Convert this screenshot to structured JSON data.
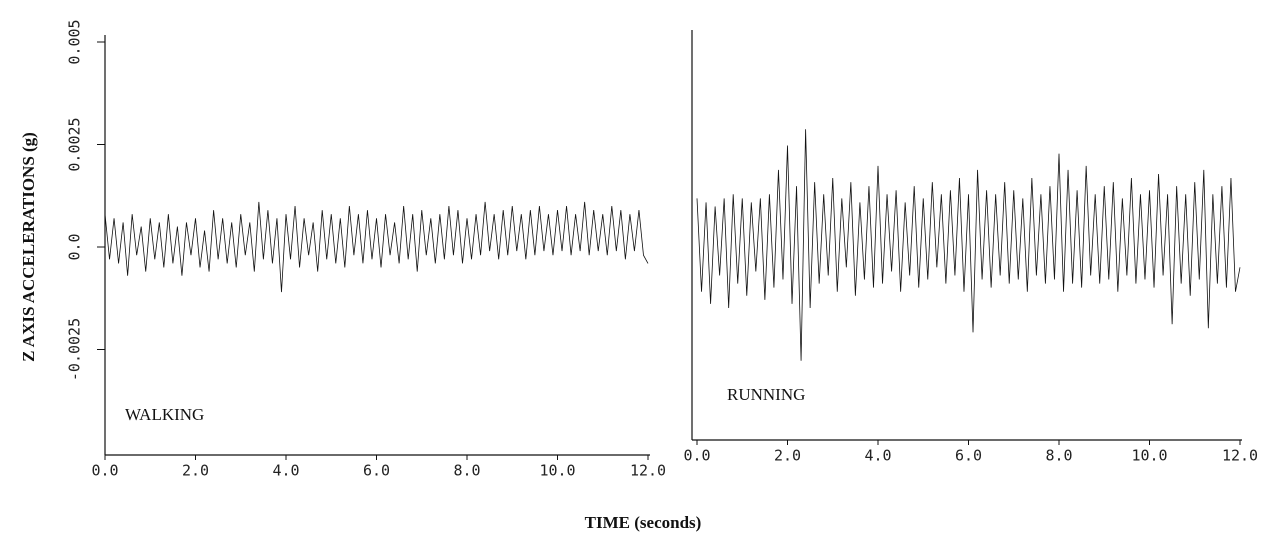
{
  "chart_data": [
    {
      "type": "line",
      "annotation": "WALKING",
      "ylabel": "Z AXIS ACCELERATIONS (g)",
      "xlabel": "TIME (seconds)",
      "xlim": [
        0,
        12
      ],
      "ylim": [
        -0.005,
        0.005
      ],
      "xticks": [
        {
          "value": 0,
          "label": "0.0"
        },
        {
          "value": 2,
          "label": "2.0"
        },
        {
          "value": 4,
          "label": "4.0"
        },
        {
          "value": 6,
          "label": "6.0"
        },
        {
          "value": 8,
          "label": "8.0"
        },
        {
          "value": 10,
          "label": "10.0"
        },
        {
          "value": 12,
          "label": "12.0"
        }
      ],
      "yticks": [
        -0.0025,
        {
          "value": 0,
          "label": "0.0"
        },
        0.0025,
        0.005
      ],
      "color": "#111111",
      "x": [
        0,
        0.1,
        0.2,
        0.3,
        0.4,
        0.5,
        0.6,
        0.7,
        0.8,
        0.9,
        1,
        1.1,
        1.2,
        1.3,
        1.4,
        1.5,
        1.6,
        1.7,
        1.8,
        1.9,
        2,
        2.1,
        2.2,
        2.3,
        2.4,
        2.5,
        2.6,
        2.7,
        2.8,
        2.9,
        3,
        3.1,
        3.2,
        3.3,
        3.4,
        3.5,
        3.6,
        3.7,
        3.8,
        3.9,
        4,
        4.1,
        4.2,
        4.3,
        4.4,
        4.5,
        4.6,
        4.7,
        4.8,
        4.9,
        5,
        5.1,
        5.2,
        5.3,
        5.4,
        5.5,
        5.6,
        5.7,
        5.8,
        5.9,
        6,
        6.1,
        6.2,
        6.3,
        6.4,
        6.5,
        6.6,
        6.7,
        6.8,
        6.9,
        7,
        7.1,
        7.2,
        7.3,
        7.4,
        7.5,
        7.6,
        7.7,
        7.8,
        7.9,
        8,
        8.1,
        8.2,
        8.3,
        8.4,
        8.5,
        8.6,
        8.7,
        8.8,
        8.9,
        9,
        9.1,
        9.2,
        9.3,
        9.4,
        9.5,
        9.6,
        9.7,
        9.8,
        9.9,
        10,
        10.1,
        10.2,
        10.3,
        10.4,
        10.5,
        10.6,
        10.7,
        10.8,
        10.9,
        11,
        11.1,
        11.2,
        11.3,
        11.4,
        11.5,
        11.6,
        11.7,
        11.8,
        11.9,
        12
      ],
      "values": [
        0.0008,
        -0.0003,
        0.0007,
        -0.0004,
        0.0006,
        -0.0007,
        0.0008,
        -0.0002,
        0.0005,
        -0.0006,
        0.0007,
        -0.0003,
        0.0006,
        -0.0005,
        0.0008,
        -0.0004,
        0.0005,
        -0.0007,
        0.0006,
        -0.0002,
        0.0007,
        -0.0005,
        0.0004,
        -0.0006,
        0.0009,
        -0.0003,
        0.0007,
        -0.0004,
        0.0006,
        -0.0005,
        0.0008,
        -0.0002,
        0.0006,
        -0.0006,
        0.0011,
        -0.0003,
        0.0009,
        -0.0004,
        0.0007,
        -0.0011,
        0.0008,
        -0.0003,
        0.001,
        -0.0005,
        0.0007,
        -0.0002,
        0.0006,
        -0.0006,
        0.0009,
        -0.0003,
        0.0008,
        -0.0004,
        0.0007,
        -0.0005,
        0.001,
        -0.0002,
        0.0008,
        -0.0004,
        0.0009,
        -0.0003,
        0.0007,
        -0.0005,
        0.0008,
        -0.0002,
        0.0006,
        -0.0004,
        0.001,
        -0.0003,
        0.0008,
        -0.0006,
        0.0009,
        -0.0002,
        0.0007,
        -0.0004,
        0.0008,
        -0.0003,
        0.001,
        -0.0002,
        0.0009,
        -0.0004,
        0.0007,
        -0.0003,
        0.0008,
        -0.0002,
        0.0011,
        -0.0001,
        0.0008,
        -0.0003,
        0.0009,
        -0.0002,
        0.001,
        -0.0001,
        0.0008,
        -0.0003,
        0.0009,
        -0.0002,
        0.001,
        -0.0001,
        0.0008,
        -0.0002,
        0.0009,
        -0.0001,
        0.001,
        -0.0002,
        0.0008,
        -0.0001,
        0.0011,
        -0.0002,
        0.0009,
        -0.0001,
        0.0008,
        -0.0002,
        0.001,
        -0.0001,
        0.0009,
        -0.0003,
        0.0008,
        -0.0001,
        0.0009,
        -0.0002,
        -0.0004
      ]
    },
    {
      "type": "line",
      "annotation": "RUNNING",
      "xlim": [
        0,
        12
      ],
      "ylim": [
        -0.005,
        0.005
      ],
      "xticks": [
        {
          "value": 0,
          "label": "0.0"
        },
        {
          "value": 2,
          "label": "2.0"
        },
        {
          "value": 4,
          "label": "4.0"
        },
        {
          "value": 6,
          "label": "6.0"
        },
        {
          "value": 8,
          "label": "8.0"
        },
        {
          "value": 10,
          "label": "10.0"
        },
        {
          "value": 12,
          "label": "12.0"
        }
      ],
      "color": "#111111",
      "x": [
        0,
        0.1,
        0.2,
        0.3,
        0.4,
        0.5,
        0.6,
        0.7,
        0.8,
        0.9,
        1,
        1.1,
        1.2,
        1.3,
        1.4,
        1.5,
        1.6,
        1.7,
        1.8,
        1.9,
        2,
        2.1,
        2.2,
        2.3,
        2.4,
        2.5,
        2.6,
        2.7,
        2.8,
        2.9,
        3,
        3.1,
        3.2,
        3.3,
        3.4,
        3.5,
        3.6,
        3.7,
        3.8,
        3.9,
        4,
        4.1,
        4.2,
        4.3,
        4.4,
        4.5,
        4.6,
        4.7,
        4.8,
        4.9,
        5,
        5.1,
        5.2,
        5.3,
        5.4,
        5.5,
        5.6,
        5.7,
        5.8,
        5.9,
        6,
        6.1,
        6.2,
        6.3,
        6.4,
        6.5,
        6.6,
        6.7,
        6.8,
        6.9,
        7,
        7.1,
        7.2,
        7.3,
        7.4,
        7.5,
        7.6,
        7.7,
        7.8,
        7.9,
        8,
        8.1,
        8.2,
        8.3,
        8.4,
        8.5,
        8.6,
        8.7,
        8.8,
        8.9,
        9,
        9.1,
        9.2,
        9.3,
        9.4,
        9.5,
        9.6,
        9.7,
        9.8,
        9.9,
        10,
        10.1,
        10.2,
        10.3,
        10.4,
        10.5,
        10.6,
        10.7,
        10.8,
        10.9,
        11,
        11.1,
        11.2,
        11.3,
        11.4,
        11.5,
        11.6,
        11.7,
        11.8,
        11.9,
        12
      ],
      "values": [
        0.0011,
        -0.0012,
        0.001,
        -0.0015,
        0.0009,
        -0.0008,
        0.0011,
        -0.0016,
        0.0012,
        -0.001,
        0.0011,
        -0.0013,
        0.001,
        -0.0007,
        0.0011,
        -0.0014,
        0.0012,
        -0.0011,
        0.0018,
        -0.0009,
        0.0024,
        -0.0015,
        0.0014,
        -0.0029,
        0.0028,
        -0.0016,
        0.0015,
        -0.001,
        0.0012,
        -0.0008,
        0.0016,
        -0.0012,
        0.0011,
        -0.0006,
        0.0015,
        -0.0013,
        0.001,
        -0.0009,
        0.0014,
        -0.0011,
        0.0019,
        -0.001,
        0.0012,
        -0.0007,
        0.0013,
        -0.0012,
        0.001,
        -0.0008,
        0.0014,
        -0.0011,
        0.0011,
        -0.0009,
        0.0015,
        -0.0006,
        0.0012,
        -0.001,
        0.0013,
        -0.0008,
        0.0016,
        -0.0012,
        0.0012,
        -0.0022,
        0.0018,
        -0.0009,
        0.0013,
        -0.0011,
        0.0012,
        -0.0008,
        0.0015,
        -0.001,
        0.0013,
        -0.0009,
        0.0011,
        -0.0012,
        0.0016,
        -0.0008,
        0.0012,
        -0.001,
        0.0014,
        -0.0009,
        0.0022,
        -0.0012,
        0.0018,
        -0.001,
        0.0013,
        -0.0011,
        0.0019,
        -0.0008,
        0.0012,
        -0.001,
        0.0014,
        -0.0009,
        0.0015,
        -0.0012,
        0.0011,
        -0.0008,
        0.0016,
        -0.001,
        0.0012,
        -0.0009,
        0.0013,
        -0.0011,
        0.0017,
        -0.0008,
        0.0012,
        -0.002,
        0.0014,
        -0.001,
        0.0012,
        -0.0013,
        0.0015,
        -0.0009,
        0.0018,
        -0.0021,
        0.0012,
        -0.001,
        0.0014,
        -0.0011,
        0.0016,
        -0.0012,
        -0.0006
      ]
    }
  ]
}
